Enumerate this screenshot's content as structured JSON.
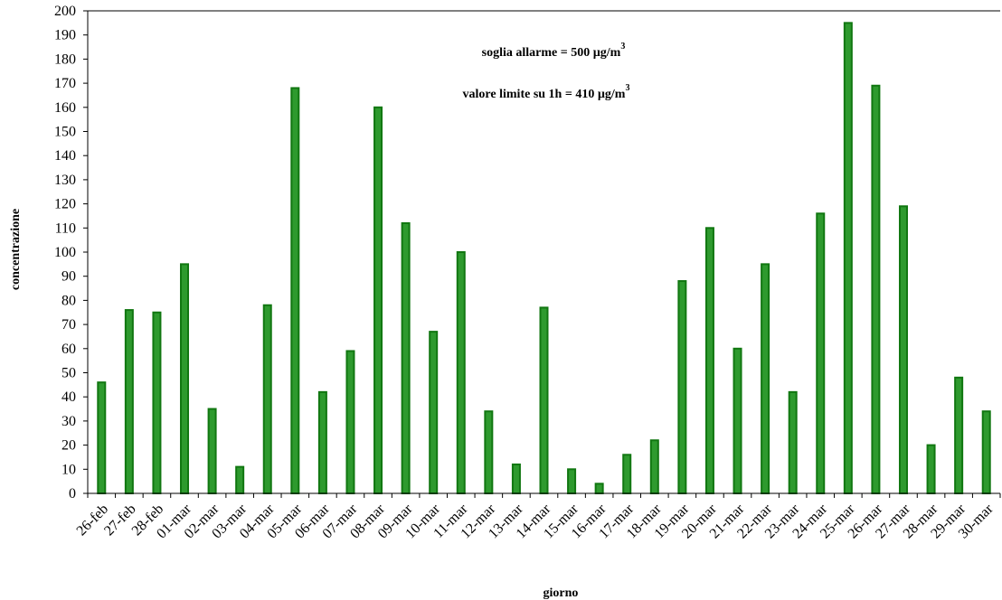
{
  "chart_data": {
    "type": "bar",
    "title": "",
    "xlabel": "giorno",
    "ylabel": "concentrazione",
    "ylim": [
      0,
      200
    ],
    "yticks": [
      0,
      10,
      20,
      30,
      40,
      50,
      60,
      70,
      80,
      90,
      100,
      110,
      120,
      130,
      140,
      150,
      160,
      170,
      180,
      190,
      200
    ],
    "grid": false,
    "legend": "none",
    "bar_color": "#2e9a2e",
    "bar_edge_color": "#117711",
    "annotations": [
      {
        "text": "soglia allarme = 500 µg/m",
        "sup": "3"
      },
      {
        "text": "valore limite su 1h = 410 µg/m",
        "sup": "3"
      }
    ],
    "categories": [
      "26-feb",
      "27-feb",
      "28-feb",
      "01-mar",
      "02-mar",
      "03-mar",
      "04-mar",
      "05-mar",
      "06-mar",
      "07-mar",
      "08-mar",
      "09-mar",
      "10-mar",
      "11-mar",
      "12-mar",
      "13-mar",
      "14-mar",
      "15-mar",
      "16-mar",
      "17-mar",
      "18-mar",
      "19-mar",
      "20-mar",
      "21-mar",
      "22-mar",
      "23-mar",
      "24-mar",
      "25-mar",
      "26-mar",
      "27-mar",
      "28-mar",
      "29-mar",
      "30-mar"
    ],
    "values": [
      46,
      76,
      75,
      95,
      35,
      11,
      78,
      168,
      42,
      59,
      160,
      112,
      67,
      100,
      34,
      12,
      77,
      10,
      4,
      16,
      22,
      88,
      110,
      60,
      95,
      42,
      116,
      195,
      169,
      119,
      20,
      48,
      34
    ]
  }
}
